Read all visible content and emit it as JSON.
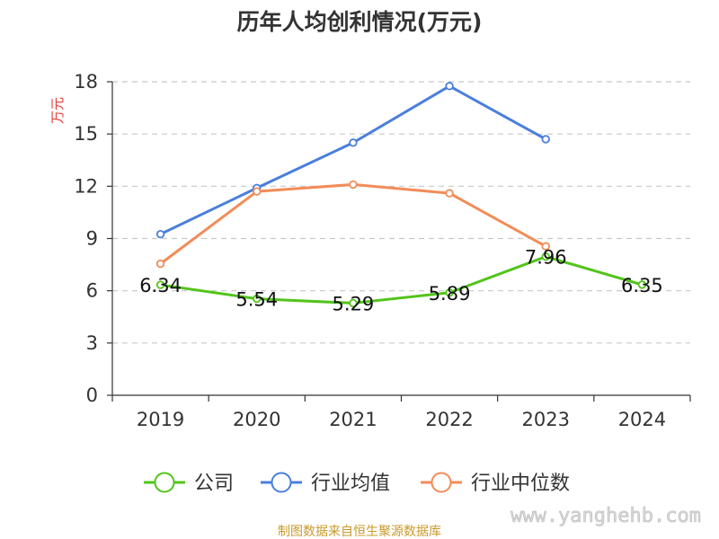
{
  "chart_data": {
    "type": "line",
    "title": "历年人均创利情况(万元)",
    "ylabel": "万元",
    "xlabel": "",
    "categories": [
      "2019",
      "2020",
      "2021",
      "2022",
      "2023",
      "2024"
    ],
    "ylim": [
      0,
      18
    ],
    "yticks": [
      0,
      3,
      6,
      9,
      12,
      15,
      18
    ],
    "grid": true,
    "legend_position": "bottom",
    "series": [
      {
        "name": "公司",
        "color": "#52c41a",
        "values": [
          6.34,
          5.54,
          5.29,
          5.89,
          7.96,
          6.35
        ],
        "labels": [
          "6.34",
          "5.54",
          "5.29",
          "5.89",
          "7.96",
          "6.35"
        ]
      },
      {
        "name": "行业均值",
        "color": "#4a7fdb",
        "values": [
          9.25,
          11.9,
          14.5,
          17.75,
          14.7,
          null
        ]
      },
      {
        "name": "行业中位数",
        "color": "#f28c58",
        "values": [
          7.55,
          11.7,
          12.1,
          11.6,
          8.55,
          null
        ]
      }
    ]
  },
  "footer": {
    "source": "制图数据来自恒生聚源数据库",
    "watermark": "www.yanghehb.com"
  }
}
